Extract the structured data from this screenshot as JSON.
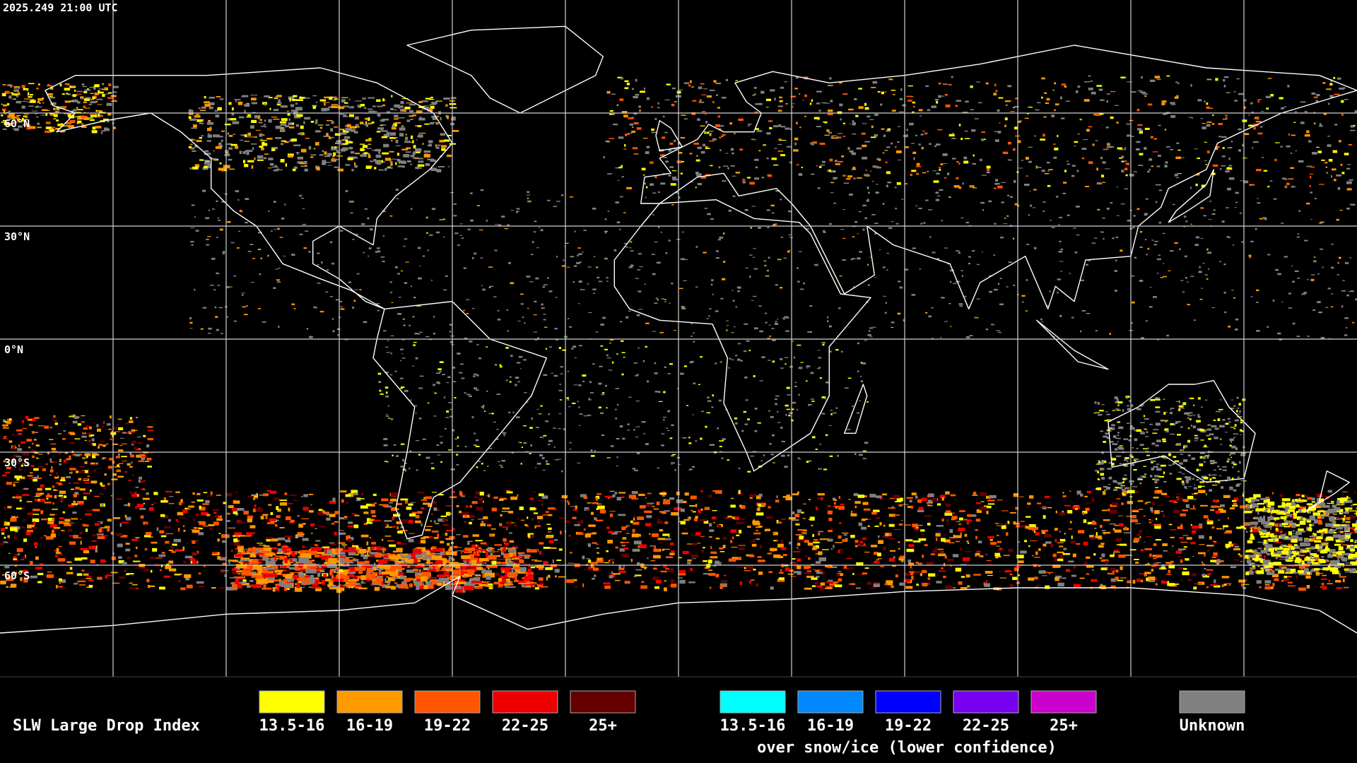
{
  "timestamp": "2025.249 21:00 UTC",
  "latitude_labels": [
    "60°N",
    "30°N",
    "0°N",
    "30°S",
    "60°S"
  ],
  "legend": {
    "title": "SLW Large Drop Index",
    "items": [
      {
        "label": "13.5-16",
        "color": "#ffff00"
      },
      {
        "label": "16-19",
        "color": "#ff9900"
      },
      {
        "label": "19-22",
        "color": "#ff5500"
      },
      {
        "label": "22-25",
        "color": "#ee0000"
      },
      {
        "label": "25+",
        "color": "#660000"
      }
    ],
    "snow_items": [
      {
        "label": "13.5-16",
        "color": "#00ffff"
      },
      {
        "label": "16-19",
        "color": "#0088ff"
      },
      {
        "label": "19-22",
        "color": "#0000ff"
      },
      {
        "label": "22-25",
        "color": "#7700ee"
      },
      {
        "label": "25+",
        "color": "#cc00cc"
      }
    ],
    "snow_caption": "over snow/ice (lower confidence)",
    "unknown": {
      "label": "Unknown",
      "color": "#808080"
    }
  }
}
